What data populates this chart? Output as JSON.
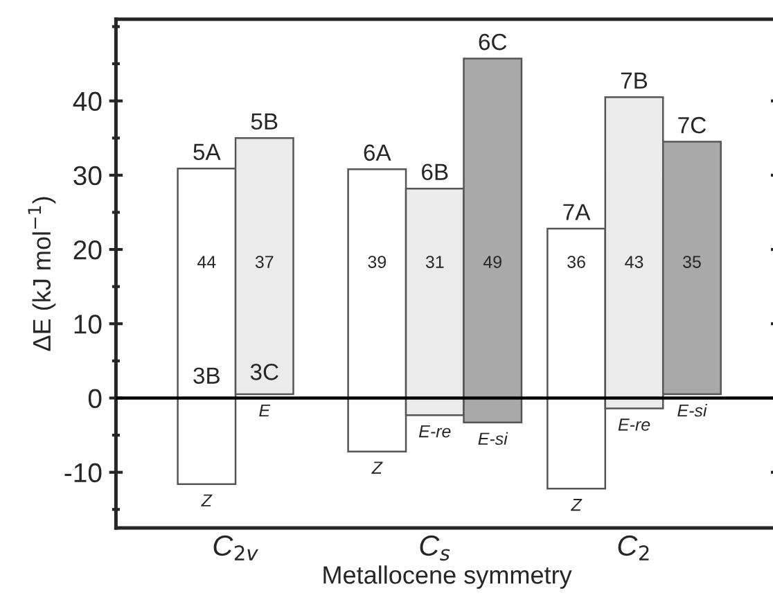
{
  "chart_data": {
    "type": "bar",
    "xlabel": "Metallocene symmetry",
    "ylabel": "ΔE (kJ mol$^{−1}$)",
    "categories": [
      "C$_{2v}$",
      "C$_{s}$",
      "C$_{2}$"
    ],
    "series": [
      {
        "color": "#ffffff",
        "values": [
          42.5,
          38.0,
          35.0
        ],
        "base": [
          -11.6,
          -7.2,
          -12.2
        ]
      },
      {
        "color": "#ebebeb",
        "values": [
          34.5,
          30.5,
          41.9
        ],
        "base": [
          0.5,
          -2.3,
          -1.4
        ]
      },
      {
        "color": "#a9a9a9",
        "values": [
          null,
          49.0,
          34.0
        ],
        "base": [
          null,
          -3.3,
          0.5
        ]
      }
    ],
    "ylim": [
      -17.5,
      51
    ],
    "yticks": [
      -10,
      0,
      10,
      20,
      30,
      40
    ],
    "ref_lines": [
      {
        "axis": "y",
        "value": 0,
        "color": "#000000"
      }
    ],
    "annotations": [
      "5A",
      "44",
      "Z",
      "5B",
      "37",
      "E",
      "6A",
      "39",
      "Z",
      "6B",
      "31",
      "E-re",
      "6C",
      "49",
      "E-si",
      "7A",
      "36",
      "Z",
      "7B",
      "43",
      "E-re",
      "7C",
      "35",
      "E-si",
      "3B",
      "3C"
    ]
  }
}
